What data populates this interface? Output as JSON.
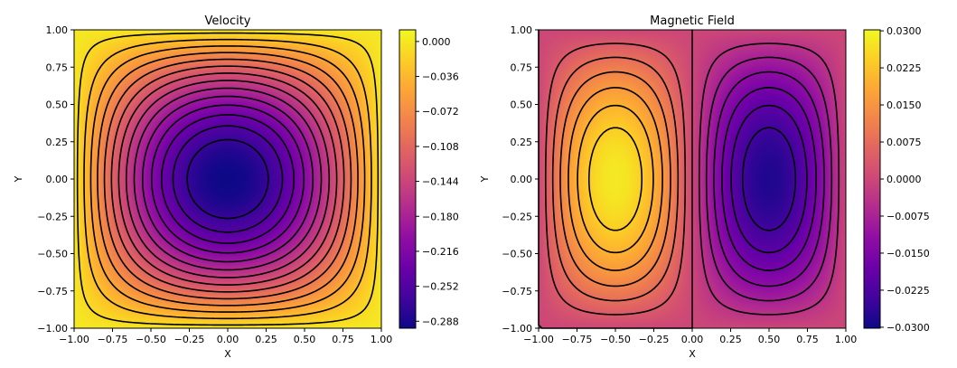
{
  "chart_data": [
    {
      "type": "heatmap",
      "title": "Velocity",
      "xlabel": "X",
      "ylabel": "Y",
      "xlim": [
        -1.0,
        1.0
      ],
      "ylim": [
        -1.0,
        1.0
      ],
      "xticks": [
        -1.0,
        -0.75,
        -0.5,
        -0.25,
        0.0,
        0.25,
        0.5,
        0.75,
        1.0
      ],
      "yticks": [
        -1.0,
        -0.75,
        -0.5,
        -0.25,
        0.0,
        0.25,
        0.5,
        0.75,
        1.0
      ],
      "xtick_labels": [
        "−1.00",
        "−0.75",
        "−0.50",
        "−0.25",
        "0.00",
        "0.25",
        "0.50",
        "0.75",
        "1.00"
      ],
      "ytick_labels": [
        "−1.00",
        "−0.75",
        "−0.50",
        "−0.25",
        "0.00",
        "0.25",
        "0.50",
        "0.75",
        "1.00"
      ],
      "field": "-0.295*sin(pi*(x+1)/2)*sin(pi*(y+1)/2)",
      "colormap": "plasma",
      "colorbar": {
        "min": -0.2952,
        "max": 0.012,
        "ticks": [
          0.0,
          -0.036,
          -0.072,
          -0.108,
          -0.144,
          -0.18,
          -0.216,
          -0.252,
          -0.288
        ],
        "tick_labels": [
          "0.000",
          "−0.036",
          "−0.072",
          "−0.108",
          "−0.144",
          "−0.180",
          "−0.216",
          "−0.252",
          "−0.288"
        ]
      },
      "contour_levels": [
        -0.01,
        -0.03,
        -0.05,
        -0.07,
        -0.09,
        -0.11,
        -0.13,
        -0.15,
        -0.17,
        -0.19,
        -0.21,
        -0.23,
        -0.25,
        -0.27
      ]
    },
    {
      "type": "heatmap",
      "title": "Magnetic Field",
      "xlabel": "X",
      "ylabel": "Y",
      "xlim": [
        -1.0,
        1.0
      ],
      "ylim": [
        -1.0,
        1.0
      ],
      "xticks": [
        -1.0,
        -0.75,
        -0.5,
        -0.25,
        0.0,
        0.25,
        0.5,
        0.75,
        1.0
      ],
      "yticks": [
        -1.0,
        -0.75,
        -0.5,
        -0.25,
        0.0,
        0.25,
        0.5,
        0.75,
        1.0
      ],
      "xtick_labels": [
        "−1.00",
        "−0.75",
        "−0.50",
        "−0.25",
        "0.00",
        "0.25",
        "0.50",
        "0.75",
        "1.00"
      ],
      "ytick_labels": [
        "−1.00",
        "−0.75",
        "−0.50",
        "−0.25",
        "0.00",
        "0.25",
        "0.50",
        "0.75",
        "1.00"
      ],
      "field": "0.028*sin(pi*(x+1))*sin(pi*(y+1)/2)",
      "colormap": "plasma",
      "colorbar": {
        "min": -0.0302,
        "max": 0.0302,
        "ticks": [
          0.03,
          0.0225,
          0.015,
          0.0075,
          0.0,
          -0.0075,
          -0.015,
          -0.0225,
          -0.03
        ],
        "tick_labels": [
          "0.0300",
          "0.0225",
          "0.0150",
          "0.0075",
          "0.0000",
          "−0.0075",
          "−0.0150",
          "−0.0225",
          "−0.0300"
        ]
      },
      "contour_levels": [
        0.0,
        0.004,
        0.008,
        0.012,
        0.016,
        0.02,
        0.024,
        -0.004,
        -0.008,
        -0.012,
        -0.016,
        -0.02,
        -0.024
      ]
    }
  ]
}
